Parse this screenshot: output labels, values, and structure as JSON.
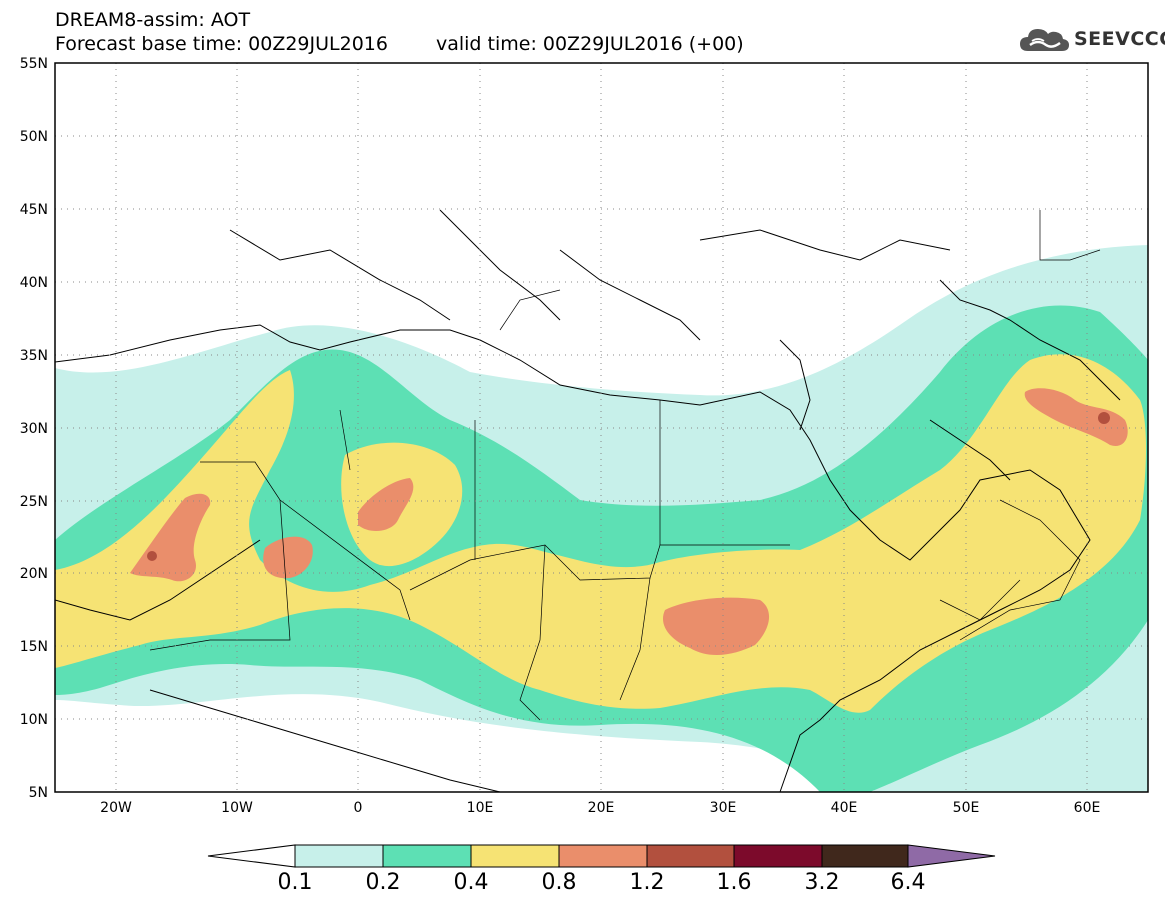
{
  "header": {
    "title": "DREAM8-assim: AOT",
    "base_time": "Forecast base time: 00Z29JUL2016",
    "valid_time": "valid time: 00Z29JUL2016 (+00)"
  },
  "logo": {
    "text": "SEEVCCC",
    "icon": "cloud-icon"
  },
  "map": {
    "lat_labels": [
      "55N",
      "50N",
      "45N",
      "40N",
      "35N",
      "30N",
      "25N",
      "20N",
      "15N",
      "10N",
      "5N"
    ],
    "lon_labels": [
      "20W",
      "10W",
      "0",
      "10E",
      "20E",
      "30E",
      "40E",
      "50E",
      "60E"
    ],
    "lat_range": [
      5,
      55
    ],
    "lon_range": [
      -25,
      65
    ],
    "grid": "dotted",
    "projection": "lat-lon"
  },
  "colorbar": {
    "labels": [
      "0.1",
      "0.2",
      "0.4",
      "0.8",
      "1.2",
      "1.6",
      "3.2",
      "6.4"
    ],
    "colors": [
      "#ffffff",
      "#c7f0ea",
      "#5de0b4",
      "#f6e374",
      "#ea8e6b",
      "#b2503e",
      "#7c0a2b",
      "#40281c",
      "#8f6aa6"
    ]
  }
}
